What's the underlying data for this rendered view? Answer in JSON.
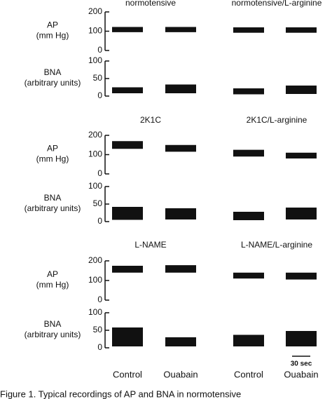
{
  "panels": [
    {
      "title_left": "normotensive",
      "title_right": "normotensive/L-arginine",
      "ap": {
        "label": "AP",
        "unit": "(mm Hg)",
        "ylim": [
          0,
          200
        ],
        "yticks": [
          0,
          100,
          200
        ],
        "traces": [
          [
            95,
            122
          ],
          [
            95,
            122
          ],
          [
            92,
            120
          ],
          [
            92,
            120
          ]
        ]
      },
      "bna": {
        "label": "BNA",
        "unit": "(arbitrary units)",
        "ylim": [
          0,
          100
        ],
        "yticks": [
          0,
          50,
          100
        ],
        "traces": [
          [
            8,
            25
          ],
          [
            8,
            33
          ],
          [
            5,
            22
          ],
          [
            6,
            30
          ]
        ]
      }
    },
    {
      "title_left": "2K1C",
      "title_right": "2K1C/L-arginine",
      "ap": {
        "label": "AP",
        "unit": "(mm Hg)",
        "ylim": [
          0,
          200
        ],
        "yticks": [
          0,
          100,
          200
        ],
        "traces": [
          [
            130,
            170
          ],
          [
            115,
            150
          ],
          [
            90,
            125
          ],
          [
            80,
            110
          ]
        ]
      },
      "bna": {
        "label": "BNA",
        "unit": "(arbitrary units)",
        "ylim": [
          0,
          100
        ],
        "yticks": [
          0,
          50,
          100
        ],
        "traces": [
          [
            5,
            42
          ],
          [
            6,
            38
          ],
          [
            4,
            28
          ],
          [
            6,
            40
          ]
        ]
      }
    },
    {
      "title_left": "L-NAME",
      "title_right": "L-NAME/L-arginine",
      "ap": {
        "label": "AP",
        "unit": "(mm Hg)",
        "ylim": [
          0,
          200
        ],
        "yticks": [
          0,
          100,
          200
        ],
        "traces": [
          [
            140,
            175
          ],
          [
            140,
            178
          ],
          [
            110,
            140
          ],
          [
            105,
            140
          ]
        ]
      },
      "bna": {
        "label": "BNA",
        "unit": "(arbitrary units)",
        "ylim": [
          0,
          100
        ],
        "yticks": [
          0,
          50,
          100
        ],
        "traces": [
          [
            4,
            58
          ],
          [
            4,
            30
          ],
          [
            4,
            37
          ],
          [
            4,
            48
          ]
        ]
      }
    }
  ],
  "columns": [
    "Control",
    "Ouabain",
    "Control",
    "Ouabain"
  ],
  "scale_bar": "30 sec",
  "caption": "Figure 1. Typical recordings of AP and BNA in normotensive"
}
